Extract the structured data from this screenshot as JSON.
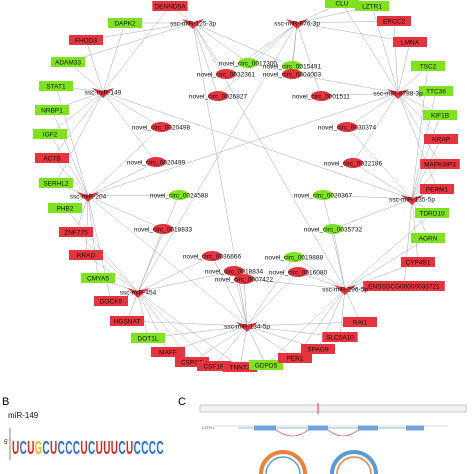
{
  "colors": {
    "up": "#e6343f",
    "down": "#7ee21f",
    "edge": "#9aa3ad",
    "logo_a": "#1f9e3a",
    "logo_c": "#2a6fd1",
    "logo_g": "#f2b21b",
    "logo_t": "#d7261e",
    "track": "#6fa3da",
    "ring_a": "#e9823a",
    "ring_b": "#5b9bd5"
  },
  "network": {
    "genes": [
      {
        "label": "DENND5A",
        "status": "up"
      },
      {
        "label": "DAPK2",
        "status": "down"
      },
      {
        "label": "FHOD3",
        "status": "up"
      },
      {
        "label": "ADAM33",
        "status": "down"
      },
      {
        "label": "STAT1",
        "status": "down"
      },
      {
        "label": "NRBP1",
        "status": "down"
      },
      {
        "label": "IGF2",
        "status": "down"
      },
      {
        "label": "ACTB",
        "status": "up"
      },
      {
        "label": "SERHL2",
        "status": "down"
      },
      {
        "label": "PHB2",
        "status": "down"
      },
      {
        "label": "ZNF775",
        "status": "up"
      },
      {
        "label": "RRAD",
        "status": "up"
      },
      {
        "label": "CMYA5",
        "status": "down"
      },
      {
        "label": "DOCK9",
        "status": "up"
      },
      {
        "label": "HGSNAT",
        "status": "up"
      },
      {
        "label": "DOT1L",
        "status": "down"
      },
      {
        "label": "MAFF",
        "status": "up"
      },
      {
        "label": "CSPG5",
        "status": "up"
      },
      {
        "label": "CSF1R",
        "status": "up"
      },
      {
        "label": "TNNT3",
        "status": "up"
      },
      {
        "label": "GDPD5",
        "status": "down"
      },
      {
        "label": "PER1",
        "status": "up"
      },
      {
        "label": "SPAG9",
        "status": "up"
      },
      {
        "label": "SLC5A10",
        "status": "up"
      },
      {
        "label": "RAI1",
        "status": "up"
      },
      {
        "label": "ENSSSCG00000033721",
        "status": "up"
      },
      {
        "label": "CYP4B1",
        "status": "up"
      },
      {
        "label": "AGRN",
        "status": "down"
      },
      {
        "label": "TDRD10",
        "status": "down"
      },
      {
        "label": "PERM1",
        "status": "up"
      },
      {
        "label": "MAPK8IP3",
        "status": "up"
      },
      {
        "label": "NRAP",
        "status": "up"
      },
      {
        "label": "KIF1B",
        "status": "down"
      },
      {
        "label": "TTC36",
        "status": "down"
      },
      {
        "label": "TSC2",
        "status": "down"
      },
      {
        "label": "LMNA",
        "status": "up"
      },
      {
        "label": "ERCC2",
        "status": "up"
      },
      {
        "label": "LZTR1",
        "status": "down"
      },
      {
        "label": "CLU",
        "status": "down"
      }
    ],
    "mirnas": [
      {
        "label": "ssc-miR-125-3p"
      },
      {
        "label": "ssc-miR-676-3p"
      },
      {
        "label": "ssc-miR-149"
      },
      {
        "label": "ssc-miR-9788-3p"
      },
      {
        "label": "ssc-miR-204"
      },
      {
        "label": "ssc-miR-135-5p"
      },
      {
        "label": "ssc-miR-454"
      },
      {
        "label": "ssc-miR-296-5p"
      },
      {
        "label": "ssc-miR-134-5p"
      }
    ],
    "circrnas": [
      {
        "label": "novel_circ_0017300",
        "status": "down"
      },
      {
        "label": "novel_circ_0015491",
        "status": "down"
      },
      {
        "label": "novel_circ_0032361",
        "status": "up"
      },
      {
        "label": "novel_circ_0004003",
        "status": "up"
      },
      {
        "label": "novel_circ_0026827",
        "status": "up"
      },
      {
        "label": "novel_circ_0001511",
        "status": "up"
      },
      {
        "label": "novel_circ_0020498",
        "status": "up"
      },
      {
        "label": "novel_circ_0030374",
        "status": "up"
      },
      {
        "label": "novel_circ_0020499",
        "status": "up"
      },
      {
        "label": "novel_circ_0022186",
        "status": "up"
      },
      {
        "label": "novel_circ_0024588",
        "status": "down"
      },
      {
        "label": "novel_circ_0020367",
        "status": "down"
      },
      {
        "label": "novel_circ_0018833",
        "status": "up"
      },
      {
        "label": "novel_circ_0035732",
        "status": "down"
      },
      {
        "label": "novel_circ_0036666",
        "status": "up"
      },
      {
        "label": "novel_circ_0019888",
        "status": "down"
      },
      {
        "label": "novel_circ_0018834",
        "status": "up"
      },
      {
        "label": "novel_circ_0016080",
        "status": "up"
      },
      {
        "label": "novel_circ_0007422",
        "status": "up"
      }
    ]
  },
  "panel_b": {
    "letter": "B",
    "title": "miR-149",
    "prime": "5'",
    "sequence": "UCUGCUCCCUCUUUCUCCCC"
  },
  "panel_c": {
    "letter": "C",
    "gene_label": "LZTR1"
  }
}
